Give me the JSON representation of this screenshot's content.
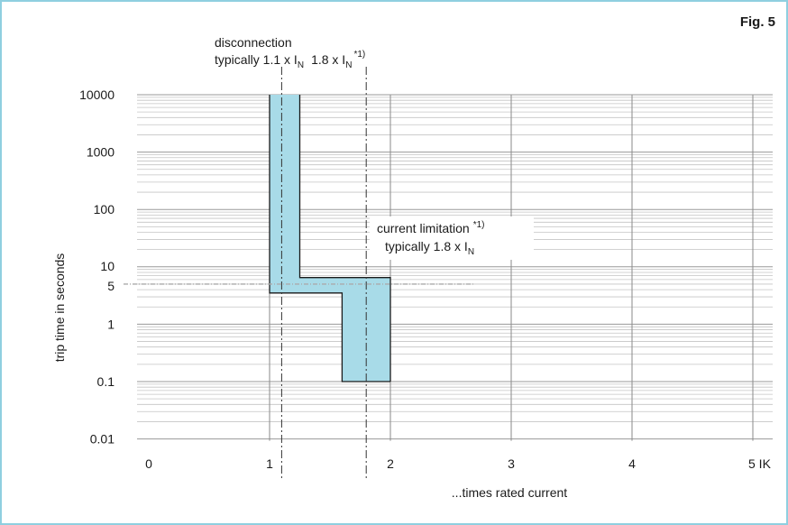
{
  "figure_label": "Fig. 5",
  "chart_data": {
    "type": "area",
    "xlabel": "...times rated current",
    "ylabel": "trip time in seconds",
    "x_ticks": [
      {
        "value": 0,
        "label": "0"
      },
      {
        "value": 1,
        "label": "1"
      },
      {
        "value": 2,
        "label": "2"
      },
      {
        "value": 3,
        "label": "3"
      },
      {
        "value": 4,
        "label": "4"
      },
      {
        "value": 5,
        "label": "5 IK"
      }
    ],
    "y_ticks": [
      {
        "value": 0.01,
        "label": "0.01"
      },
      {
        "value": 0.1,
        "label": "0.1"
      },
      {
        "value": 1,
        "label": "1"
      },
      {
        "value": 5,
        "label": "5"
      },
      {
        "value": 10,
        "label": "10"
      },
      {
        "value": 100,
        "label": "100"
      },
      {
        "value": 1000,
        "label": "1000"
      },
      {
        "value": 10000,
        "label": "10000"
      }
    ],
    "xlim": [
      0,
      5
    ],
    "ylim": [
      0.01,
      10000
    ],
    "y_scale": "log",
    "grid": true,
    "band": {
      "color": "#a8dbe8",
      "lower_boundary": [
        [
          1,
          10000
        ],
        [
          1,
          3.5
        ],
        [
          1.6,
          3.5
        ],
        [
          1.6,
          0.1
        ],
        [
          2,
          0.1
        ]
      ],
      "upper_boundary": [
        [
          1.25,
          10000
        ],
        [
          1.25,
          6.5
        ],
        [
          2,
          6.5
        ],
        [
          2,
          0.1
        ]
      ]
    },
    "reference_lines": [
      {
        "x": 1.1,
        "style": "dash-dot"
      },
      {
        "x": 1.8,
        "style": "dash-dot"
      }
    ],
    "reference_hline": {
      "y": 5,
      "style": "dotted"
    },
    "annotations": {
      "disconnection_title": "disconnection",
      "disconnection_line2": "typically 1.1 x I",
      "disconnection_sub1": "N",
      "disconnection_mid": "1.8 x I",
      "disconnection_sub2": "N",
      "disconnection_note": "*1)",
      "limitation_title": "current limitation",
      "limitation_note": "*1)",
      "limitation_line2": "typically 1.8 x I",
      "limitation_sub": "N"
    }
  }
}
